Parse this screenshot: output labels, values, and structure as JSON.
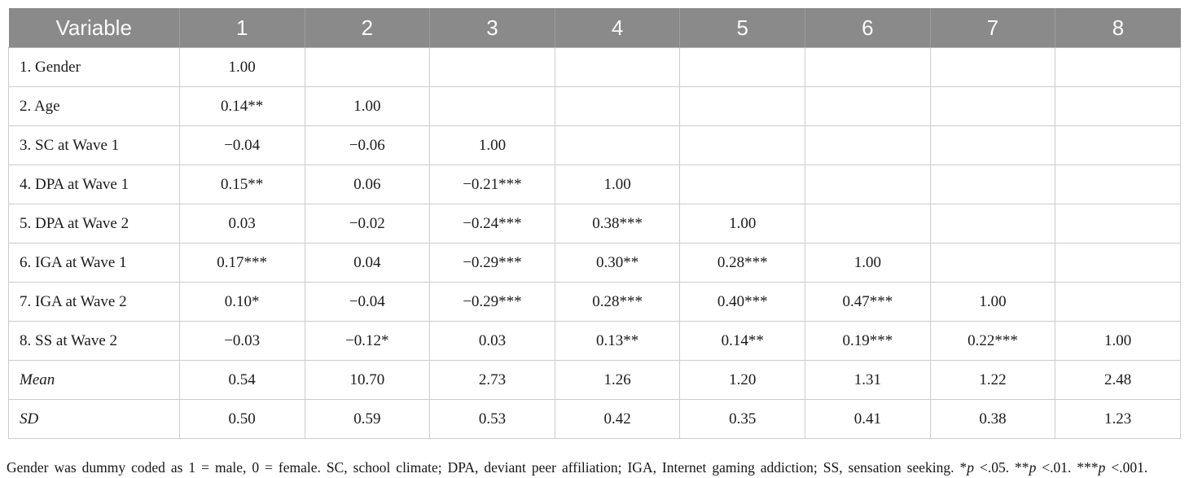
{
  "table": {
    "columns": [
      "Variable",
      "1",
      "2",
      "3",
      "4",
      "5",
      "6",
      "7",
      "8"
    ],
    "rows": [
      {
        "label": "1. Gender",
        "italic": false,
        "values": [
          "1.00",
          "",
          "",
          "",
          "",
          "",
          "",
          ""
        ]
      },
      {
        "label": "2. Age",
        "italic": false,
        "values": [
          "0.14**",
          "1.00",
          "",
          "",
          "",
          "",
          "",
          ""
        ]
      },
      {
        "label": "3. SC at Wave 1",
        "italic": false,
        "values": [
          "−0.04",
          "−0.06",
          "1.00",
          "",
          "",
          "",
          "",
          ""
        ]
      },
      {
        "label": "4. DPA at Wave 1",
        "italic": false,
        "values": [
          "0.15**",
          "0.06",
          "−0.21***",
          "1.00",
          "",
          "",
          "",
          ""
        ]
      },
      {
        "label": "5. DPA at Wave 2",
        "italic": false,
        "values": [
          "0.03",
          "−0.02",
          "−0.24***",
          "0.38***",
          "1.00",
          "",
          "",
          ""
        ]
      },
      {
        "label": "6. IGA at Wave 1",
        "italic": false,
        "values": [
          "0.17***",
          "0.04",
          "−0.29***",
          "0.30**",
          "0.28***",
          "1.00",
          "",
          ""
        ]
      },
      {
        "label": "7. IGA at Wave 2",
        "italic": false,
        "values": [
          "0.10*",
          "−0.04",
          "−0.29***",
          "0.28***",
          "0.40***",
          "0.47***",
          "1.00",
          ""
        ]
      },
      {
        "label": "8. SS at Wave 2",
        "italic": false,
        "values": [
          "−0.03",
          "−0.12*",
          "0.03",
          "0.13**",
          "0.14**",
          "0.19***",
          "0.22***",
          "1.00"
        ]
      },
      {
        "label": "Mean",
        "italic": true,
        "values": [
          "0.54",
          "10.70",
          "2.73",
          "1.26",
          "1.20",
          "1.31",
          "1.22",
          "2.48"
        ]
      },
      {
        "label": "SD",
        "italic": true,
        "values": [
          "0.50",
          "0.59",
          "0.53",
          "0.42",
          "0.35",
          "0.41",
          "0.38",
          "1.23"
        ]
      }
    ]
  },
  "footnote": {
    "segments": [
      {
        "text": "Gender was dummy coded as 1 = male, 0 = female. SC, school climate; DPA, deviant peer affiliation; IGA, Internet gaming addiction; SS, sensation seeking. *",
        "italic": false
      },
      {
        "text": "p",
        "italic": true
      },
      {
        "text": " <.05. **",
        "italic": false
      },
      {
        "text": "p",
        "italic": true
      },
      {
        "text": " <.01. ***",
        "italic": false
      },
      {
        "text": "p",
        "italic": true
      },
      {
        "text": " <.001.",
        "italic": false
      }
    ]
  },
  "colors": {
    "header_bg": "#8a8a8a",
    "header_text": "#fbfbfb",
    "body_text": "#1b1b1b",
    "border": "#cccccc"
  }
}
